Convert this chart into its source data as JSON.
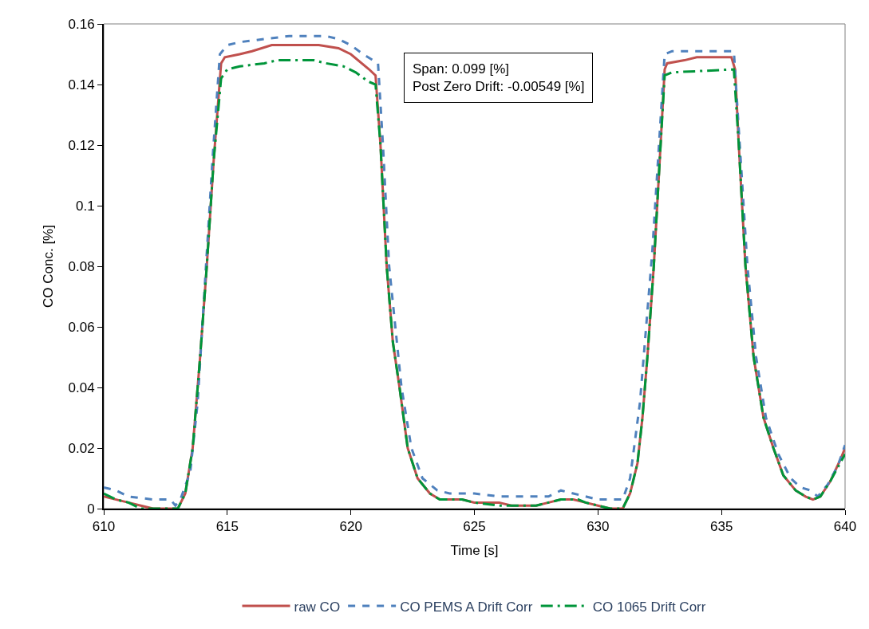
{
  "chart_data": {
    "type": "line",
    "xlabel": "Time [s]",
    "ylabel": "CO Conc. [%]",
    "xlim": [
      610,
      640
    ],
    "xticks": [
      610,
      615,
      620,
      625,
      630,
      635,
      640
    ],
    "ylim": [
      0,
      0.16
    ],
    "yticks": [
      0,
      0.02,
      0.04,
      0.06,
      0.08,
      0.1,
      0.12,
      0.14,
      0.16
    ],
    "grid": false,
    "legend": "bottom",
    "marker": "none",
    "annotations": [
      "Span: 0.099 [%]",
      "Post Zero Drift: -0.00549 [%]"
    ],
    "series": [
      {
        "name": "raw CO",
        "color": "#c0504d",
        "line_style": "solid",
        "x": [
          610,
          610.5,
          611,
          611.5,
          612,
          613.0,
          613.3,
          613.6,
          613.9,
          614.17,
          614.45,
          614.75,
          614.9,
          615.5,
          616,
          616.8,
          618.7,
          619.5,
          620,
          620.74,
          621.0,
          621.2,
          621.45,
          621.7,
          621.97,
          622.3,
          622.7,
          623.2,
          623.6,
          624.5,
          625,
          626,
          626.5,
          627.5,
          628,
          628.5,
          629,
          629.5,
          630,
          630.5,
          631.0,
          631.3,
          631.6,
          631.8,
          632.0,
          632.26,
          632.5,
          632.7,
          632.8,
          633.5,
          634,
          635.4,
          635.55,
          635.7,
          635.97,
          636.3,
          636.7,
          637.1,
          637.5,
          638.0,
          638.4,
          638.7,
          639.0,
          639.4,
          639.8,
          640
        ],
        "values": [
          0.004,
          0.003,
          0.002,
          0.001,
          0,
          0,
          0.005,
          0.02,
          0.05,
          0.08,
          0.115,
          0.147,
          0.149,
          0.15,
          0.151,
          0.153,
          0.153,
          0.152,
          0.15,
          0.145,
          0.143,
          0.12,
          0.08,
          0.055,
          0.04,
          0.02,
          0.01,
          0.005,
          0.003,
          0.003,
          0.002,
          0.002,
          0.001,
          0.001,
          0.002,
          0.003,
          0.003,
          0.002,
          0.001,
          0,
          0,
          0.005,
          0.015,
          0.03,
          0.05,
          0.08,
          0.115,
          0.145,
          0.147,
          0.148,
          0.149,
          0.149,
          0.145,
          0.12,
          0.08,
          0.05,
          0.03,
          0.02,
          0.011,
          0.006,
          0.004,
          0.003,
          0.004,
          0.009,
          0.016,
          0.02
        ]
      },
      {
        "name": "CO PEMS A Drift Corr",
        "color": "#4f81bd",
        "line_style": "dashed",
        "x": [
          610,
          610.5,
          611,
          612,
          612.7,
          612.9,
          613.1,
          613.5,
          613.8,
          614.1,
          614.4,
          614.7,
          615,
          615.5,
          616.5,
          617.5,
          619,
          619.5,
          620,
          620.5,
          621.1,
          621.3,
          621.55,
          622.05,
          622.45,
          622.9,
          623.5,
          624,
          625,
          626,
          628,
          628.5,
          629,
          630,
          631,
          631.3,
          631.7,
          632.2,
          632.7,
          633,
          635.5,
          635.7,
          636.05,
          636.4,
          636.8,
          637.3,
          637.8,
          638.2,
          638.6,
          638.9,
          639.3,
          639.7,
          640
        ],
        "values": [
          0.007,
          0.006,
          0.004,
          0.003,
          0.003,
          0.001,
          0.003,
          0.012,
          0.035,
          0.075,
          0.115,
          0.15,
          0.153,
          0.154,
          0.155,
          0.156,
          0.156,
          0.155,
          0.153,
          0.15,
          0.147,
          0.12,
          0.08,
          0.04,
          0.02,
          0.01,
          0.006,
          0.005,
          0.005,
          0.004,
          0.004,
          0.006,
          0.005,
          0.003,
          0.003,
          0.01,
          0.035,
          0.085,
          0.15,
          0.151,
          0.151,
          0.125,
          0.08,
          0.05,
          0.03,
          0.018,
          0.01,
          0.007,
          0.006,
          0.004,
          0.008,
          0.014,
          0.021
        ]
      },
      {
        "name": "CO 1065 Drift Corr",
        "color": "#00953a",
        "line_style": "dashdot",
        "x": [
          610,
          610.5,
          611,
          611.5,
          612.2,
          613.0,
          613.3,
          613.6,
          613.9,
          614.17,
          614.45,
          614.75,
          615,
          615.5,
          616.5,
          617,
          618.5,
          619,
          619.7,
          620.2,
          620.7,
          621.0,
          621.2,
          621.45,
          621.7,
          621.97,
          622.3,
          622.7,
          623.2,
          623.6,
          624.5,
          625,
          626,
          627.5,
          628,
          628.5,
          629.2,
          629.5,
          630,
          630.5,
          631.0,
          631.3,
          631.6,
          631.8,
          632.0,
          632.26,
          632.5,
          632.7,
          633,
          635.5,
          635.7,
          635.97,
          636.3,
          636.7,
          637.1,
          637.5,
          638.0,
          638.4,
          638.7,
          639.0,
          639.4,
          639.8,
          640
        ],
        "values": [
          0.005,
          0.003,
          0.002,
          0,
          0,
          0,
          0.005,
          0.02,
          0.05,
          0.08,
          0.115,
          0.142,
          0.145,
          0.146,
          0.147,
          0.148,
          0.148,
          0.147,
          0.146,
          0.144,
          0.141,
          0.14,
          0.12,
          0.08,
          0.055,
          0.04,
          0.02,
          0.01,
          0.005,
          0.003,
          0.003,
          0.002,
          0.001,
          0.001,
          0.002,
          0.003,
          0.003,
          0.002,
          0.001,
          0,
          0,
          0.005,
          0.015,
          0.03,
          0.05,
          0.08,
          0.115,
          0.143,
          0.144,
          0.145,
          0.12,
          0.08,
          0.05,
          0.03,
          0.02,
          0.011,
          0.006,
          0.004,
          0.003,
          0.004,
          0.009,
          0.015,
          0.018
        ]
      }
    ]
  }
}
